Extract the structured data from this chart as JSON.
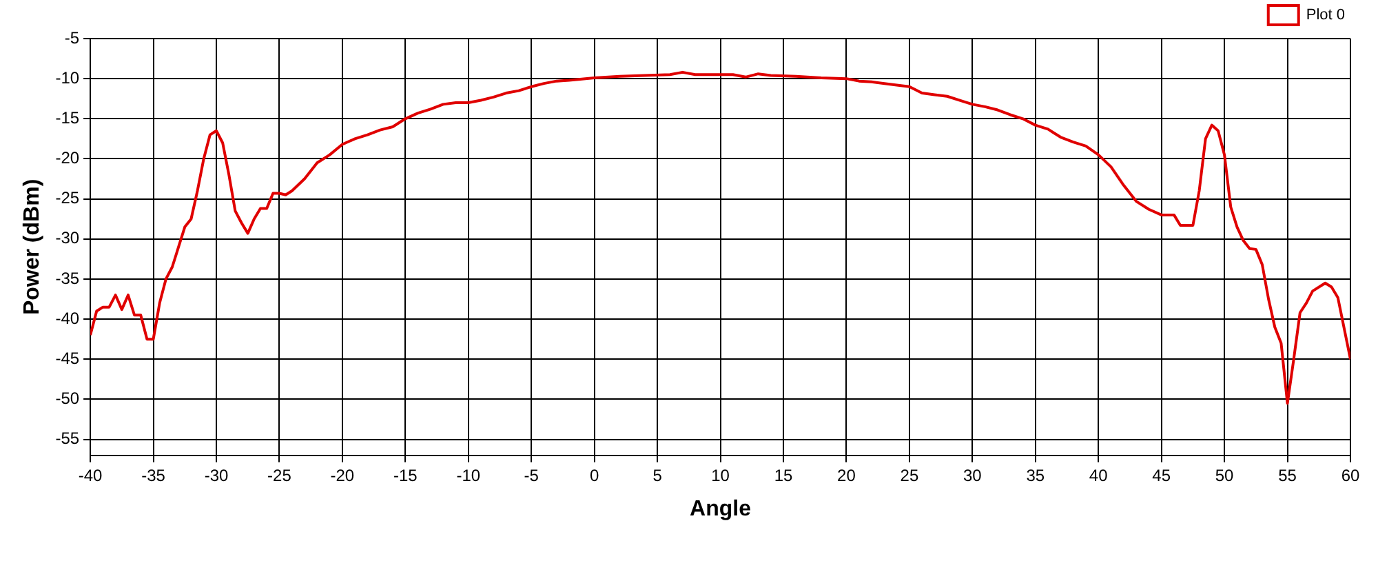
{
  "chart_data": {
    "type": "line",
    "xlabel": "Angle",
    "ylabel": "Power (dBm)",
    "xlim": [
      -40,
      60
    ],
    "ylim": [
      -57,
      -5
    ],
    "xticks": [
      -40,
      -35,
      -30,
      -25,
      -20,
      -15,
      -10,
      -5,
      0,
      5,
      10,
      15,
      20,
      25,
      30,
      35,
      40,
      45,
      50,
      55,
      60
    ],
    "yticks": [
      -55,
      -50,
      -45,
      -40,
      -35,
      -30,
      -25,
      -20,
      -15,
      -10,
      -5
    ],
    "grid": true,
    "legend": "top right",
    "marker": "none",
    "line_style": "solid",
    "series": [
      {
        "name": "Plot 0",
        "color": "#e00000",
        "x": [
          -40,
          -39.5,
          -39,
          -38.5,
          -38,
          -37.5,
          -37,
          -36.5,
          -36,
          -35.5,
          -35,
          -34.5,
          -34,
          -33.5,
          -33,
          -32.5,
          -32,
          -31.5,
          -31,
          -30.5,
          -30,
          -29.5,
          -29,
          -28.5,
          -28,
          -27.5,
          -27,
          -26.5,
          -26,
          -25.5,
          -25,
          -24.5,
          -24,
          -23,
          -22,
          -21,
          -20,
          -19,
          -18,
          -17,
          -16,
          -15,
          -14,
          -13,
          -12,
          -11,
          -10,
          -9,
          -8,
          -7,
          -6,
          -5,
          -4,
          -3,
          -2,
          0,
          2,
          4,
          6,
          7,
          8,
          10,
          11,
          12,
          13,
          14,
          16,
          18,
          20,
          21,
          22,
          24,
          25,
          26,
          27,
          28,
          29,
          30,
          31,
          32,
          33,
          34,
          35,
          36,
          37,
          38,
          39,
          40,
          41,
          42,
          43,
          44,
          45,
          46,
          46.5,
          47,
          47.5,
          48,
          48.5,
          49,
          49.5,
          50,
          50.5,
          51,
          51.5,
          52,
          52.5,
          53,
          53.5,
          54,
          54.5,
          55,
          55.5,
          56,
          56.5,
          57,
          58,
          58.5,
          59,
          60
        ],
        "values": [
          -42,
          -39,
          -38.5,
          -38.5,
          -37,
          -38.8,
          -37,
          -39.5,
          -39.5,
          -42.5,
          -42.5,
          -38,
          -35,
          -33.5,
          -31,
          -28.5,
          -27.5,
          -24,
          -20,
          -17,
          -16.5,
          -18,
          -22,
          -26.5,
          -28,
          -29.3,
          -27.5,
          -26.2,
          -26.2,
          -24.3,
          -24.3,
          -24.5,
          -24,
          -22.5,
          -20.5,
          -19.5,
          -18.2,
          -17.5,
          -17,
          -16.4,
          -16,
          -15,
          -14.3,
          -13.8,
          -13.2,
          -13,
          -13,
          -12.7,
          -12.3,
          -11.8,
          -11.5,
          -11,
          -10.6,
          -10.3,
          -10.2,
          -9.9,
          -9.7,
          -9.6,
          -9.5,
          -9.2,
          -9.5,
          -9.5,
          -9.5,
          -9.8,
          -9.4,
          -9.6,
          -9.7,
          -9.9,
          -10,
          -10.3,
          -10.4,
          -10.8,
          -11,
          -11.8,
          -12,
          -12.2,
          -12.7,
          -13.2,
          -13.5,
          -13.9,
          -14.5,
          -15,
          -15.8,
          -16.3,
          -17.3,
          -17.9,
          -18.4,
          -19.5,
          -21,
          -23.3,
          -25.3,
          -26.3,
          -27,
          -27,
          -28.3,
          -28.3,
          -28.3,
          -24,
          -17.5,
          -15.8,
          -16.5,
          -19.5,
          -26,
          -28.5,
          -30.2,
          -31.2,
          -31.3,
          -33.2,
          -37.5,
          -41,
          -43,
          -50.5,
          -45,
          -39.2,
          -38,
          -36.5,
          -35.5,
          -36,
          -37.3,
          -45
        ]
      }
    ]
  }
}
